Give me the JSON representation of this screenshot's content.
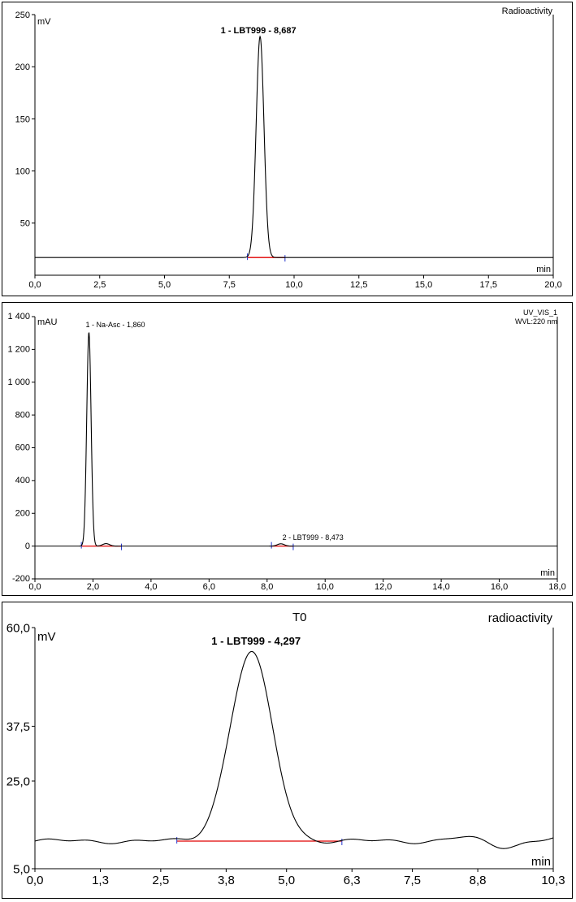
{
  "chart_data": [
    {
      "type": "line",
      "title": "",
      "detector": "Radioactivity",
      "xlabel": "min",
      "ylabel": "mV",
      "xlim": [
        0.0,
        20.0
      ],
      "ylim": [
        0,
        250
      ],
      "x_ticks": [
        "0,0",
        "2,5",
        "5,0",
        "7,5",
        "10,0",
        "12,5",
        "15,0",
        "17,5",
        "20,0"
      ],
      "y_ticks": [
        "50",
        "100",
        "150",
        "200",
        "250"
      ],
      "baseline": 17,
      "peaks": [
        {
          "label": "1 - LBT999 - 8,687",
          "retention_time": 8.687,
          "height": 229,
          "width_sigma": 0.15,
          "integration_start": 8.2,
          "integration_end": 9.65
        }
      ],
      "series": [
        {
          "values": []
        }
      ]
    },
    {
      "type": "line",
      "title": "",
      "detector": "UV_VIS_1",
      "wavelength": "WVL:220 nm",
      "xlabel": "min",
      "ylabel": "mAU",
      "xlim": [
        0.0,
        18.0
      ],
      "ylim": [
        -200,
        1400
      ],
      "x_ticks": [
        "0,0",
        "2,0",
        "4,0",
        "6,0",
        "8,0",
        "10,0",
        "12,0",
        "14,0",
        "16,0",
        "18,0"
      ],
      "y_ticks": [
        "-200",
        "0",
        "200",
        "400",
        "600",
        "800",
        "1 000",
        "1 200",
        "1 400"
      ],
      "baseline": 0,
      "peaks": [
        {
          "label": "1 - Na-Asc - 1,860",
          "retention_time": 1.86,
          "height": 1305,
          "width_sigma": 0.075,
          "integration_start": 1.6,
          "integration_end": 2.98
        },
        {
          "label": "2 - LBT999 - 8,473",
          "retention_time": 8.473,
          "height": 14,
          "width_sigma": 0.12,
          "integration_start": 8.15,
          "integration_end": 8.9
        }
      ],
      "minor_peaks": [
        {
          "retention_time": 2.45,
          "height": 15,
          "width_sigma": 0.12
        }
      ],
      "series": [
        {
          "values": []
        }
      ]
    },
    {
      "type": "line",
      "title": "T0",
      "detector": "radioactivity",
      "xlabel": "min",
      "ylabel": "mV",
      "xlim": [
        0.0,
        10.3
      ],
      "ylim": [
        5.0,
        60.0
      ],
      "x_ticks": [
        "0,0",
        "1,3",
        "2,5",
        "3,8",
        "5,0",
        "6,3",
        "7,5",
        "8,8",
        "10,3"
      ],
      "y_ticks": [
        "5,0",
        "25,0",
        "37,5",
        "60,0"
      ],
      "baseline": 11.3,
      "peaks": [
        {
          "label": "1 - LBT999 - 4,297",
          "retention_time": 4.297,
          "height": 54.3,
          "width_sigma": 0.42,
          "integration_start": 2.82,
          "integration_end": 6.1
        }
      ],
      "series": [
        {
          "values": []
        }
      ]
    }
  ]
}
